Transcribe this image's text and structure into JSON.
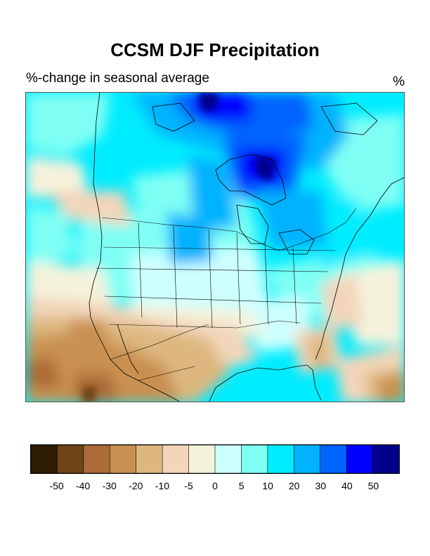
{
  "title": "CCSM DJF Precipitation",
  "subtitle": "%-change in seasonal average",
  "unit": "%",
  "legend": {
    "colors": [
      "#2f1c06",
      "#6e4418",
      "#ad6b38",
      "#c99151",
      "#ddb77f",
      "#f3d6ba",
      "#f5f2dc",
      "#cdfffe",
      "#7ffff4",
      "#00ecff",
      "#00b2ff",
      "#0064ff",
      "#0000ff",
      "#00008b"
    ],
    "labels": [
      "-50",
      "-40",
      "-30",
      "-20",
      "-10",
      "-5",
      "0",
      "5",
      "10",
      "20",
      "30",
      "40",
      "50"
    ]
  }
}
